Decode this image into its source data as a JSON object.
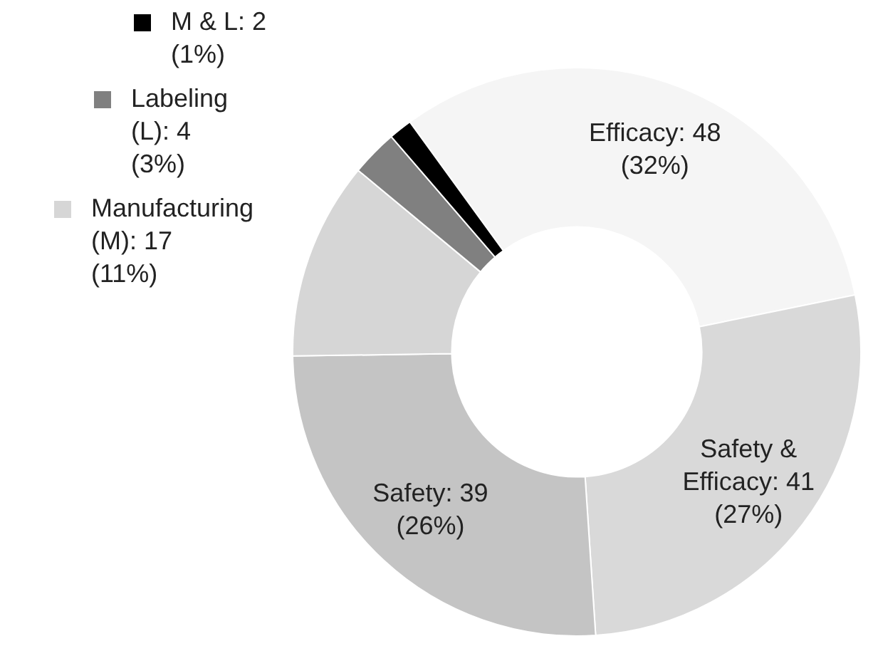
{
  "chart_data": {
    "type": "donut",
    "categories": [
      "Efficacy",
      "Safety & Efficacy",
      "Safety",
      "Manufacturing (M)",
      "Labeling (L)",
      "M & L"
    ],
    "values": [
      48,
      41,
      39,
      17,
      4,
      2
    ],
    "colors": [
      "#f5f5f5",
      "#d9d9d9",
      "#c4c4c4",
      "#d6d6d6",
      "#808080",
      "#000000"
    ],
    "value_labels": [
      "48 (32%)",
      "41 (27%)",
      "39 (26%)",
      "17 (11%)",
      "4 (3%)",
      "2 (1%)"
    ],
    "legend": "left"
  }
}
